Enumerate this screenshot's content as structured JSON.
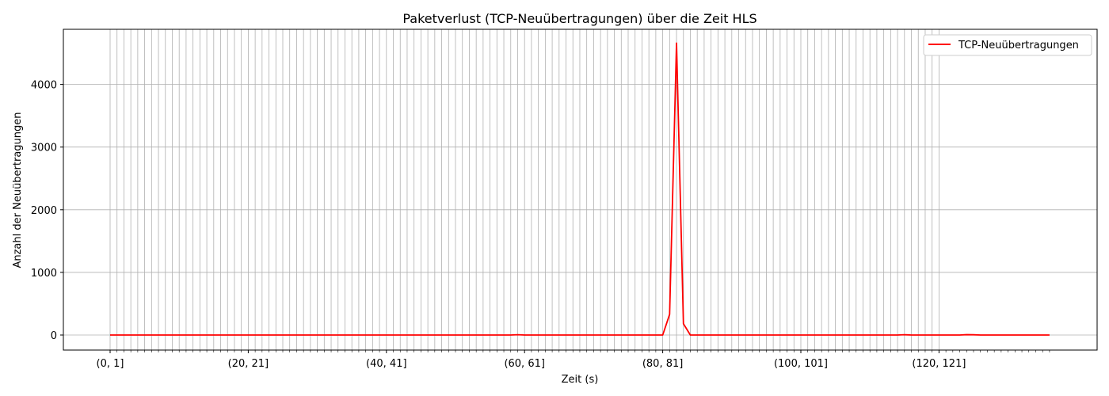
{
  "chart_data": {
    "type": "line",
    "title": "Paketverlust (TCP-Neuübertragungen) über die Zeit HLS",
    "xlabel": "Zeit (s)",
    "ylabel": "Anzahl der Neuübertragungen",
    "x_interval_start": 0,
    "x_interval_end": 136,
    "x_tick_labels": [
      {
        "at": 0,
        "label": "(0, 1]"
      },
      {
        "at": 20,
        "label": "(20, 21]"
      },
      {
        "at": 40,
        "label": "(40, 41]"
      },
      {
        "at": 60,
        "label": "(60, 61]"
      },
      {
        "at": 80,
        "label": "(80, 81]"
      },
      {
        "at": 100,
        "label": "(100, 101]"
      },
      {
        "at": 120,
        "label": "(120, 121]"
      }
    ],
    "x_grid_until": 120,
    "ylim": [
      -240,
      4880
    ],
    "y_ticks": [
      0,
      1000,
      2000,
      3000,
      4000
    ],
    "grid": true,
    "legend_position": "top-right",
    "series": [
      {
        "name": "TCP-Neuübertragungen",
        "color": "#ff0000",
        "spike": {
          "80": 0,
          "81": 330,
          "82": 4660,
          "83": 180,
          "84": 0
        },
        "small_bumps": {
          "59": 5,
          "115": 5,
          "124": 6,
          "125": 4
        }
      }
    ]
  }
}
